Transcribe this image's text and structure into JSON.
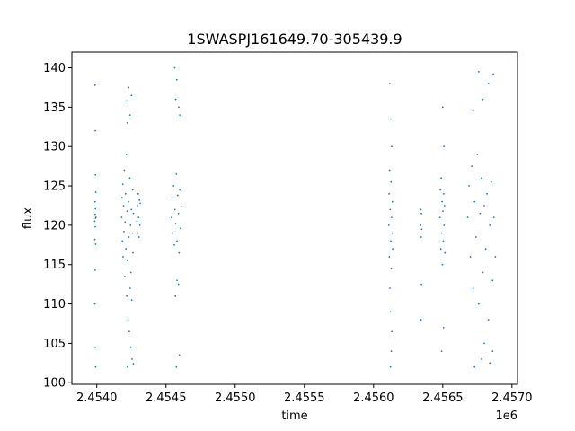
{
  "chart_data": {
    "type": "scatter",
    "title": "1SWASPJ161649.70-305439.9",
    "xlabel": "time",
    "ylabel": "flux",
    "x_offset_label": "1e6",
    "xlim": [
      2453820,
      2457040
    ],
    "ylim": [
      99.8,
      142
    ],
    "grid": false,
    "x_ticks": [
      {
        "value": 2454000,
        "label": "2.4540"
      },
      {
        "value": 2454500,
        "label": "2.4545"
      },
      {
        "value": 2455000,
        "label": "2.4550"
      },
      {
        "value": 2455500,
        "label": "2.4555"
      },
      {
        "value": 2456000,
        "label": "2.4560"
      },
      {
        "value": 2456500,
        "label": "2.4565"
      },
      {
        "value": 2457000,
        "label": "2.4570"
      }
    ],
    "y_ticks": [
      {
        "value": 100,
        "label": "100"
      },
      {
        "value": 105,
        "label": "105"
      },
      {
        "value": 110,
        "label": "110"
      },
      {
        "value": 115,
        "label": "115"
      },
      {
        "value": 120,
        "label": "120"
      },
      {
        "value": 125,
        "label": "125"
      },
      {
        "value": 130,
        "label": "130"
      },
      {
        "value": 135,
        "label": "135"
      },
      {
        "value": 140,
        "label": "140"
      }
    ],
    "marker_color": "#1f77b4",
    "series": [
      {
        "points": [
          [
            2453985,
            120.5
          ],
          [
            2453986,
            118.2
          ],
          [
            2453987,
            123.0
          ],
          [
            2453988,
            121.4
          ],
          [
            2453989,
            119.8
          ],
          [
            2453990,
            122.1
          ],
          [
            2453991,
            120.9
          ],
          [
            2453992,
            117.6
          ],
          [
            2453993,
            124.2
          ],
          [
            2453994,
            121.0
          ],
          [
            2453987,
            137.8
          ],
          [
            2453989,
            132.0
          ],
          [
            2453990,
            126.4
          ],
          [
            2453986,
            110.0
          ],
          [
            2453988,
            114.3
          ],
          [
            2453992,
            102.0
          ],
          [
            2453989,
            104.5
          ],
          [
            2454180,
            121.0
          ],
          [
            2454182,
            123.5
          ],
          [
            2454185,
            118.0
          ],
          [
            2454188,
            125.2
          ],
          [
            2454190,
            116.0
          ],
          [
            2454193,
            122.5
          ],
          [
            2454196,
            119.2
          ],
          [
            2454199,
            127.0
          ],
          [
            2454202,
            113.5
          ],
          [
            2454205,
            120.4
          ],
          [
            2454208,
            124.0
          ],
          [
            2454211,
            117.0
          ],
          [
            2454214,
            129.0
          ],
          [
            2454217,
            111.0
          ],
          [
            2454220,
            121.8
          ],
          [
            2454223,
            115.5
          ],
          [
            2454226,
            108.0
          ],
          [
            2454229,
            123.0
          ],
          [
            2454232,
            118.5
          ],
          [
            2454235,
            106.5
          ],
          [
            2454238,
            126.0
          ],
          [
            2454241,
            112.0
          ],
          [
            2454244,
            120.0
          ],
          [
            2454247,
            114.0
          ],
          [
            2454250,
            122.0
          ],
          [
            2454253,
            110.5
          ],
          [
            2454256,
            119.0
          ],
          [
            2454259,
            124.5
          ],
          [
            2454262,
            116.5
          ],
          [
            2454265,
            121.5
          ],
          [
            2454215,
            135.8
          ],
          [
            2454220,
            133.0
          ],
          [
            2454230,
            137.5
          ],
          [
            2454240,
            134.0
          ],
          [
            2454250,
            136.5
          ],
          [
            2454222,
            102.0
          ],
          [
            2454246,
            104.5
          ],
          [
            2454255,
            103.0
          ],
          [
            2454264,
            102.4
          ],
          [
            2454290,
            120.5
          ],
          [
            2454293,
            122.5
          ],
          [
            2454296,
            119.0
          ],
          [
            2454299,
            124.0
          ],
          [
            2454302,
            121.0
          ],
          [
            2454305,
            118.5
          ],
          [
            2454308,
            123.2
          ],
          [
            2454311,
            120.0
          ],
          [
            2454314,
            122.8
          ],
          [
            2454540,
            121.0
          ],
          [
            2454545,
            123.5
          ],
          [
            2454550,
            119.0
          ],
          [
            2454555,
            125.0
          ],
          [
            2454560,
            117.5
          ],
          [
            2454565,
            122.0
          ],
          [
            2454570,
            120.2
          ],
          [
            2454575,
            126.5
          ],
          [
            2454580,
            118.0
          ],
          [
            2454585,
            123.8
          ],
          [
            2454590,
            121.5
          ],
          [
            2454595,
            116.5
          ],
          [
            2454600,
            124.5
          ],
          [
            2454605,
            119.6
          ],
          [
            2454610,
            122.4
          ],
          [
            2454563,
            140.0
          ],
          [
            2454570,
            136.0
          ],
          [
            2454578,
            138.5
          ],
          [
            2454592,
            135.0
          ],
          [
            2454600,
            134.0
          ],
          [
            2454568,
            111.0
          ],
          [
            2454580,
            113.0
          ],
          [
            2454590,
            112.5
          ],
          [
            2454575,
            102.0
          ],
          [
            2454597,
            103.5
          ],
          [
            2456110,
            120.0
          ],
          [
            2456112,
            124.0
          ],
          [
            2456114,
            116.0
          ],
          [
            2456116,
            127.0
          ],
          [
            2456118,
            112.0
          ],
          [
            2456120,
            122.0
          ],
          [
            2456122,
            109.0
          ],
          [
            2456124,
            118.0
          ],
          [
            2456126,
            125.5
          ],
          [
            2456128,
            114.5
          ],
          [
            2456130,
            121.0
          ],
          [
            2456132,
            106.5
          ],
          [
            2456134,
            119.0
          ],
          [
            2456136,
            123.0
          ],
          [
            2456138,
            117.0
          ],
          [
            2456117,
            138.0
          ],
          [
            2456125,
            133.5
          ],
          [
            2456131,
            130.0
          ],
          [
            2456122,
            102.0
          ],
          [
            2456128,
            104.0
          ],
          [
            2456340,
            120.0
          ],
          [
            2456342,
            122.0
          ],
          [
            2456344,
            118.5
          ],
          [
            2456346,
            121.5
          ],
          [
            2456348,
            119.5
          ],
          [
            2456343,
            108.0
          ],
          [
            2456347,
            112.5
          ],
          [
            2456480,
            121.0
          ],
          [
            2456483,
            124.5
          ],
          [
            2456486,
            117.0
          ],
          [
            2456489,
            126.0
          ],
          [
            2456492,
            119.0
          ],
          [
            2456495,
            123.0
          ],
          [
            2456498,
            115.0
          ],
          [
            2456501,
            121.8
          ],
          [
            2456504,
            118.0
          ],
          [
            2456507,
            124.0
          ],
          [
            2456510,
            120.0
          ],
          [
            2456513,
            122.5
          ],
          [
            2456516,
            116.5
          ],
          [
            2456500,
            135.0
          ],
          [
            2456508,
            130.0
          ],
          [
            2456492,
            104.0
          ],
          [
            2456506,
            107.0
          ],
          [
            2456680,
            121.0
          ],
          [
            2456690,
            125.0
          ],
          [
            2456700,
            116.0
          ],
          [
            2456710,
            127.5
          ],
          [
            2456720,
            112.0
          ],
          [
            2456730,
            123.0
          ],
          [
            2456740,
            118.5
          ],
          [
            2456750,
            129.0
          ],
          [
            2456760,
            110.0
          ],
          [
            2456770,
            121.5
          ],
          [
            2456780,
            126.0
          ],
          [
            2456790,
            114.0
          ],
          [
            2456800,
            122.5
          ],
          [
            2456810,
            117.0
          ],
          [
            2456820,
            124.0
          ],
          [
            2456830,
            108.0
          ],
          [
            2456840,
            120.0
          ],
          [
            2456850,
            125.5
          ],
          [
            2456860,
            113.0
          ],
          [
            2456870,
            121.0
          ],
          [
            2456880,
            116.0
          ],
          [
            2456760,
            139.5
          ],
          [
            2456790,
            136.0
          ],
          [
            2456830,
            138.0
          ],
          [
            2456865,
            139.2
          ],
          [
            2456720,
            134.5
          ],
          [
            2456730,
            102.0
          ],
          [
            2456780,
            103.0
          ],
          [
            2456840,
            102.5
          ],
          [
            2456800,
            105.0
          ],
          [
            2456860,
            104.0
          ]
        ]
      }
    ]
  }
}
